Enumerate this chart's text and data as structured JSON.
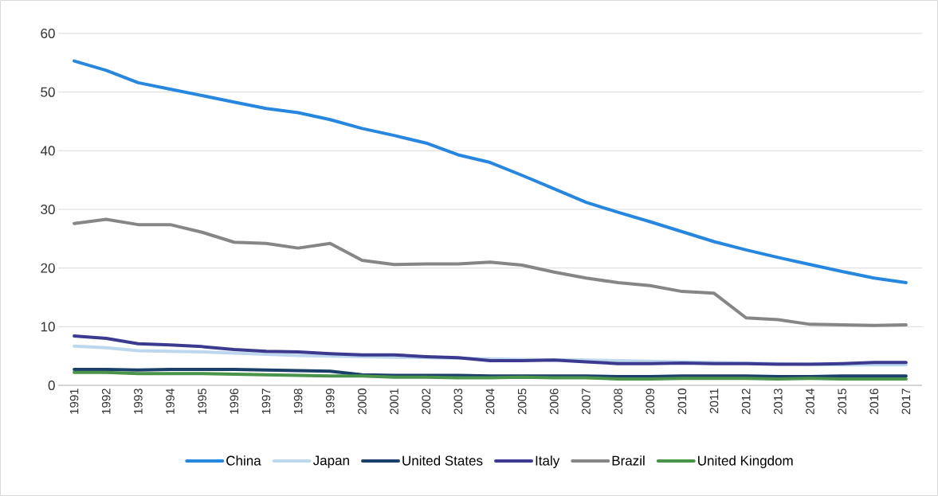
{
  "chart_data": {
    "type": "line",
    "categories": [
      "1991",
      "1992",
      "1993",
      "1994",
      "1995",
      "1996",
      "1997",
      "1998",
      "1999",
      "2000",
      "2001",
      "2002",
      "2003",
      "2004",
      "2005",
      "2006",
      "2007",
      "2008",
      "2009",
      "2010",
      "2011",
      "2012",
      "2013",
      "2014",
      "2015",
      "2016",
      "2017"
    ],
    "series": [
      {
        "name": "China",
        "color": "#2787df",
        "values": [
          55.3,
          53.7,
          51.6,
          50.5,
          49.4,
          48.3,
          47.2,
          46.5,
          45.3,
          43.8,
          42.6,
          41.3,
          39.3,
          38.0,
          35.8,
          33.5,
          31.2,
          29.5,
          27.9,
          26.2,
          24.5,
          23.1,
          21.8,
          20.6,
          19.4,
          18.3,
          17.5
        ]
      },
      {
        "name": "Japan",
        "color": "#bdd7ee",
        "values": [
          6.7,
          6.4,
          5.9,
          5.8,
          5.7,
          5.5,
          5.3,
          5.1,
          5.0,
          4.9,
          4.8,
          4.7,
          4.6,
          4.5,
          4.4,
          null,
          4.3,
          4.2,
          4.1,
          4.0,
          3.9,
          3.8,
          null,
          null,
          3.5,
          3.5,
          3.5
        ]
      },
      {
        "name": "United States",
        "color": "#1b3f6b",
        "values": [
          2.7,
          2.7,
          2.6,
          2.7,
          2.7,
          2.7,
          2.6,
          2.5,
          2.4,
          1.8,
          1.7,
          1.7,
          1.7,
          1.6,
          1.6,
          1.6,
          1.6,
          1.5,
          1.5,
          1.6,
          1.6,
          1.6,
          1.5,
          1.5,
          1.6,
          1.6,
          1.6
        ]
      },
      {
        "name": "Italy",
        "color": "#3c3a8e",
        "values": [
          8.4,
          8.0,
          7.1,
          6.9,
          6.6,
          6.1,
          5.8,
          5.7,
          5.4,
          5.2,
          5.2,
          4.9,
          4.7,
          4.2,
          4.2,
          4.3,
          4.0,
          3.7,
          3.7,
          3.8,
          3.7,
          3.7,
          3.6,
          3.6,
          3.7,
          3.9,
          3.9
        ]
      },
      {
        "name": "Brazil",
        "color": "#868686",
        "values": [
          27.6,
          28.3,
          27.4,
          27.4,
          26.1,
          24.4,
          24.2,
          23.4,
          24.2,
          21.3,
          20.6,
          20.7,
          20.7,
          21.0,
          20.5,
          19.3,
          18.3,
          17.5,
          17.0,
          16.0,
          15.7,
          11.5,
          11.2,
          10.4,
          10.3,
          10.2,
          10.3
        ]
      },
      {
        "name": "United Kingdom",
        "color": "#4a934a",
        "values": [
          2.2,
          2.2,
          2.0,
          2.0,
          2.0,
          1.9,
          1.8,
          1.7,
          1.6,
          1.6,
          1.4,
          1.4,
          1.3,
          1.3,
          1.4,
          1.3,
          1.3,
          1.1,
          1.1,
          1.2,
          1.2,
          1.2,
          1.1,
          1.2,
          1.1,
          1.1,
          1.1
        ]
      }
    ],
    "ylim": [
      0,
      60
    ],
    "yticks": [
      0,
      10,
      20,
      30,
      40,
      50,
      60
    ],
    "grid": "y",
    "legend": "bottom",
    "marker": "none",
    "line_style": "solid"
  }
}
